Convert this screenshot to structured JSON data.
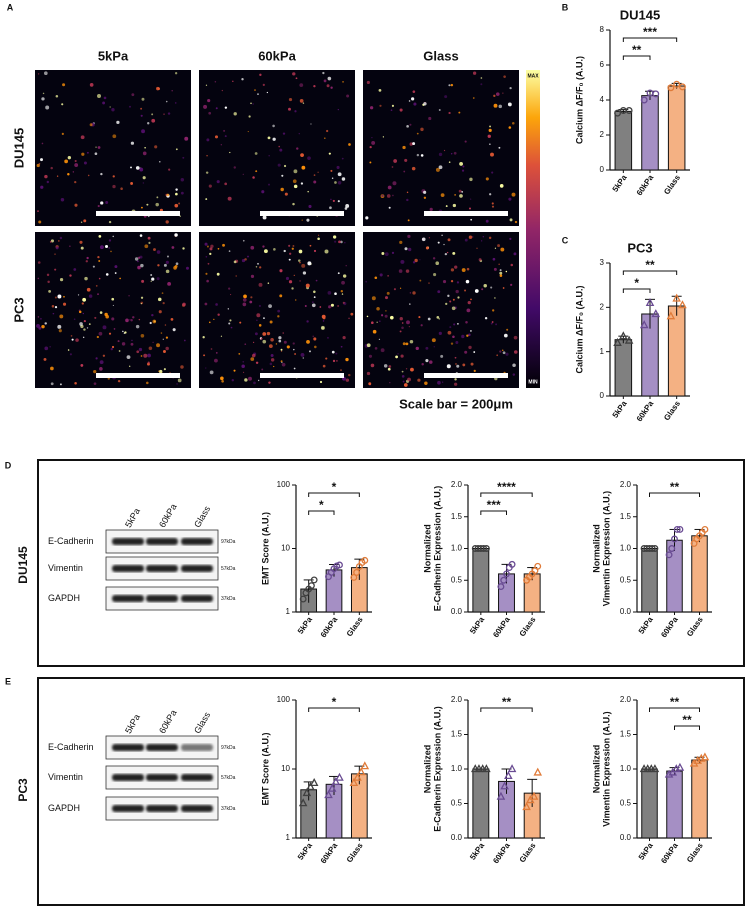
{
  "labels": {
    "a": "A",
    "d": "D",
    "e": "E"
  },
  "images": {
    "columns": [
      "5kPa",
      "60kPa",
      "Glass"
    ],
    "rows": [
      "DU145",
      "PC3"
    ],
    "colorbar": [
      "MAX",
      "MIN"
    ],
    "scale_bar": "Scale bar = 200μm"
  },
  "blots": [
    {
      "cell_line": "DU145",
      "lanes": [
        "5kPa",
        "60kPa",
        "Glass"
      ],
      "bands": [
        {
          "name": "E-Cadherin",
          "size": "97kDa"
        },
        {
          "name": "Vimentin",
          "size": "57kDa"
        },
        {
          "name": "GAPDH",
          "size": "37kDa"
        }
      ]
    },
    {
      "cell_line": "PC3",
      "lanes": [
        "5kPa",
        "60kPa",
        "Glass"
      ],
      "bands": [
        {
          "name": "E-Cadherin",
          "size": "97kDa"
        },
        {
          "name": "Vimentin",
          "size": "57kDa"
        },
        {
          "name": "GAPDH",
          "size": "37kDa"
        }
      ]
    }
  ],
  "chart_data": [
    {
      "type": "bar",
      "panel": "B",
      "title": "DU145",
      "ylabel": [
        "Calcium ΔF/F₀ (A.U.)"
      ],
      "categories": [
        "5kPa",
        "60kPa",
        "Glass"
      ],
      "values": [
        3.35,
        4.25,
        4.8
      ],
      "errors": [
        0.1,
        0.25,
        0.15
      ],
      "points": [
        [
          3.25,
          3.4,
          3.4
        ],
        [
          4.0,
          4.4,
          4.35
        ],
        [
          4.7,
          4.9,
          4.75
        ]
      ],
      "marker": "circle",
      "colors": [
        "#808080",
        "#a58fc4",
        "#f4b183"
      ],
      "point_colors": [
        "#404040",
        "#6a4c93",
        "#e07b39"
      ],
      "ylim": [
        0,
        8
      ],
      "yticks": [
        0,
        2,
        4,
        6,
        8
      ],
      "log_scale": false,
      "significance": [
        {
          "pair": [
            0,
            1
          ],
          "label": "**"
        },
        {
          "pair": [
            0,
            2
          ],
          "label": "***"
        }
      ]
    },
    {
      "type": "bar",
      "panel": "C",
      "title": "PC3",
      "ylabel": [
        "Calcium ΔF/F₀ (A.U.)"
      ],
      "categories": [
        "5kPa",
        "60kPa",
        "Glass"
      ],
      "values": [
        1.27,
        1.85,
        2.03
      ],
      "errors": [
        0.08,
        0.33,
        0.22
      ],
      "points": [
        [
          1.2,
          1.35,
          1.25
        ],
        [
          1.6,
          2.1,
          1.85
        ],
        [
          1.8,
          2.2,
          2.05
        ]
      ],
      "marker": "triangle",
      "colors": [
        "#808080",
        "#a58fc4",
        "#f4b183"
      ],
      "point_colors": [
        "#404040",
        "#6a4c93",
        "#e07b39"
      ],
      "ylim": [
        0,
        3
      ],
      "yticks": [
        0,
        1,
        2,
        3
      ],
      "log_scale": false,
      "significance": [
        {
          "pair": [
            0,
            1
          ],
          "label": "*"
        },
        {
          "pair": [
            0,
            2
          ],
          "label": "**"
        }
      ]
    },
    {
      "type": "bar",
      "ylabel": [
        "EMT Score (A.U.)"
      ],
      "categories": [
        "5kPa",
        "60kPa",
        "Glass"
      ],
      "values": [
        2.3,
        4.6,
        5.0
      ],
      "errors": [
        0.9,
        1.0,
        1.8
      ],
      "points": [
        [
          1.6,
          2.0,
          2.3,
          2.6,
          3.2
        ],
        [
          3.6,
          4.2,
          4.8,
          5.3,
          5.5
        ],
        [
          3.5,
          4.2,
          5.2,
          6.0,
          6.5
        ]
      ],
      "marker": "circle",
      "colors": [
        "#808080",
        "#a58fc4",
        "#f4b183"
      ],
      "point_colors": [
        "#404040",
        "#6a4c93",
        "#e07b39"
      ],
      "ylim": [
        1,
        100
      ],
      "yticks": [
        1,
        10,
        100
      ],
      "log_scale": true,
      "significance": [
        {
          "pair": [
            0,
            1
          ],
          "label": "*"
        },
        {
          "pair": [
            0,
            2
          ],
          "label": "*"
        }
      ]
    },
    {
      "type": "bar",
      "ylabel": [
        "Normalized",
        "E-Cadherin Expression (A.U.)"
      ],
      "categories": [
        "5kPa",
        "60kPa",
        "Glass"
      ],
      "values": [
        1.0,
        0.6,
        0.6
      ],
      "errors": [
        0,
        0.15,
        0.1
      ],
      "points": [
        [
          1,
          1,
          1,
          1,
          1
        ],
        [
          0.4,
          0.5,
          0.6,
          0.7,
          0.75
        ],
        [
          0.5,
          0.55,
          0.6,
          0.65,
          0.72
        ]
      ],
      "marker": "circle",
      "colors": [
        "#808080",
        "#a58fc4",
        "#f4b183"
      ],
      "point_colors": [
        "#404040",
        "#6a4c93",
        "#e07b39"
      ],
      "ylim": [
        0,
        2
      ],
      "yticks": [
        {
          "value": 0,
          "label": "0.0"
        },
        0.5,
        {
          "value": 1,
          "label": "1.0"
        },
        1.5,
        {
          "value": 2,
          "label": "2.0"
        }
      ],
      "log_scale": false,
      "significance": [
        {
          "pair": [
            0,
            1
          ],
          "label": "***"
        },
        {
          "pair": [
            0,
            2
          ],
          "label": "****"
        }
      ]
    },
    {
      "type": "bar",
      "ylabel": [
        "Normalized",
        "Vimentin Expression (A.U.)"
      ],
      "categories": [
        "5kPa",
        "60kPa",
        "Glass"
      ],
      "values": [
        1.0,
        1.13,
        1.2
      ],
      "errors": [
        0,
        0.17,
        0.1
      ],
      "points": [
        [
          1,
          1,
          1,
          1,
          1
        ],
        [
          0.9,
          1.0,
          1.15,
          1.3,
          1.3
        ],
        [
          1.08,
          1.15,
          1.2,
          1.25,
          1.3
        ]
      ],
      "marker": "circle",
      "colors": [
        "#808080",
        "#a58fc4",
        "#f4b183"
      ],
      "point_colors": [
        "#404040",
        "#6a4c93",
        "#e07b39"
      ],
      "ylim": [
        0,
        2
      ],
      "yticks": [
        {
          "value": 0,
          "label": "0.0"
        },
        0.5,
        {
          "value": 1,
          "label": "1.0"
        },
        1.5,
        {
          "value": 2,
          "label": "2.0"
        }
      ],
      "log_scale": false,
      "significance": [
        {
          "pair": [
            0,
            2
          ],
          "label": "**"
        }
      ]
    },
    {
      "type": "bar",
      "ylabel": [
        "EMT Score (A.U.)"
      ],
      "categories": [
        "5kPa",
        "60kPa",
        "Glass"
      ],
      "values": [
        5.0,
        6.0,
        8.5
      ],
      "errors": [
        1.5,
        1.8,
        2.5
      ],
      "points": [
        [
          3.2,
          4.5,
          5.5,
          6.3
        ],
        [
          4.2,
          5.2,
          6.5,
          7.5
        ],
        [
          6.3,
          7.5,
          9.0,
          11
        ]
      ],
      "marker": "triangle",
      "colors": [
        "#808080",
        "#a58fc4",
        "#f4b183"
      ],
      "point_colors": [
        "#404040",
        "#6a4c93",
        "#e07b39"
      ],
      "ylim": [
        1,
        100
      ],
      "yticks": [
        1,
        10,
        100
      ],
      "log_scale": true,
      "significance": [
        {
          "pair": [
            0,
            2
          ],
          "label": "*"
        }
      ]
    },
    {
      "type": "bar",
      "ylabel": [
        "Normalized",
        "E-Cadherin Expression (A.U.)"
      ],
      "categories": [
        "5kPa",
        "60kPa",
        "Glass"
      ],
      "values": [
        1.0,
        0.82,
        0.65
      ],
      "errors": [
        0,
        0.18,
        0.2
      ],
      "points": [
        [
          1,
          1,
          1,
          1
        ],
        [
          0.6,
          0.75,
          0.9,
          1.0
        ],
        [
          0.45,
          0.55,
          0.6,
          0.95
        ]
      ],
      "marker": "triangle",
      "colors": [
        "#808080",
        "#a58fc4",
        "#f4b183"
      ],
      "point_colors": [
        "#404040",
        "#6a4c93",
        "#e07b39"
      ],
      "ylim": [
        0,
        2
      ],
      "yticks": [
        {
          "value": 0,
          "label": "0.0"
        },
        0.5,
        {
          "value": 1,
          "label": "1.0"
        },
        1.5,
        {
          "value": 2,
          "label": "2.0"
        }
      ],
      "log_scale": false,
      "significance": [
        {
          "pair": [
            0,
            2
          ],
          "label": "**"
        }
      ]
    },
    {
      "type": "bar",
      "ylabel": [
        "Normalized",
        "Vimentin Expression (A.U.)"
      ],
      "categories": [
        "5kPa",
        "60kPa",
        "Glass"
      ],
      "values": [
        1.0,
        0.97,
        1.13
      ],
      "errors": [
        0,
        0.05,
        0.04
      ],
      "points": [
        [
          1,
          1,
          1,
          1
        ],
        [
          0.92,
          0.95,
          1.0,
          1.02
        ],
        [
          1.08,
          1.12,
          1.15,
          1.17
        ]
      ],
      "marker": "triangle",
      "colors": [
        "#808080",
        "#a58fc4",
        "#f4b183"
      ],
      "point_colors": [
        "#404040",
        "#6a4c93",
        "#e07b39"
      ],
      "ylim": [
        0,
        2
      ],
      "yticks": [
        {
          "value": 0,
          "label": "0.0"
        },
        0.5,
        {
          "value": 1,
          "label": "1.0"
        },
        1.5,
        {
          "value": 2,
          "label": "2.0"
        }
      ],
      "log_scale": false,
      "significance": [
        {
          "pair": [
            1,
            2
          ],
          "label": "**"
        },
        {
          "pair": [
            0,
            2
          ],
          "label": "**"
        }
      ]
    }
  ]
}
